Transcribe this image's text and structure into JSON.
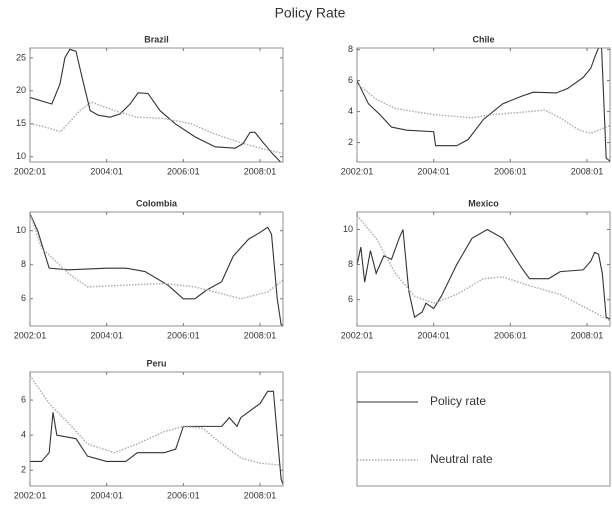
{
  "title": "Policy Rate",
  "chart_data": [
    {
      "type": "line",
      "title": "Brazil",
      "xlim": [
        2002,
        2008.6
      ],
      "ylim": [
        9.2,
        26.5
      ],
      "yticks": [
        10,
        15,
        20,
        25
      ],
      "xticks": [
        {
          "value": 2002,
          "label": "2002:01"
        },
        {
          "value": 2004,
          "label": "2004:01"
        },
        {
          "value": 2006,
          "label": "2006:01"
        },
        {
          "value": 2008,
          "label": "2008:01"
        }
      ],
      "series": [
        {
          "name": "Policy rate",
          "color": "#333333",
          "line_style": "solid",
          "x": [
            2002.0,
            2002.39,
            2002.57,
            2002.78,
            2002.91,
            2003.04,
            2003.2,
            2003.36,
            2003.57,
            2003.78,
            2004.09,
            2004.35,
            2004.61,
            2004.82,
            2005.08,
            2005.39,
            2005.79,
            2006.31,
            2006.83,
            2007.35,
            2007.56,
            2007.74,
            2007.87,
            2008.06,
            2008.32,
            2008.6
          ],
          "values": [
            19,
            18.3,
            18,
            21,
            25,
            26.3,
            26,
            22,
            17,
            16.3,
            16,
            16.5,
            18,
            19.7,
            19.6,
            17,
            15,
            13,
            11.5,
            11.3,
            12,
            13.7,
            13.7,
            12.3,
            10.5,
            8.8
          ]
        },
        {
          "name": "Neutral rate",
          "color": "#aaaaaa",
          "line_style": "dotted",
          "x": [
            2002.0,
            2002.4,
            2002.8,
            2003.3,
            2003.6,
            2004.2,
            2004.8,
            2005.5,
            2006.2,
            2006.8,
            2007.4,
            2008.0,
            2008.6
          ],
          "values": [
            15,
            14.5,
            13.8,
            17,
            18.3,
            17,
            16,
            15.8,
            15,
            13.5,
            12.3,
            11.3,
            10.5
          ]
        }
      ]
    },
    {
      "type": "line",
      "title": "Chile",
      "xlim": [
        2002,
        2008.6
      ],
      "ylim": [
        0.75,
        8.1
      ],
      "yticks": [
        2,
        4,
        6,
        8
      ],
      "xticks": [
        {
          "value": 2002,
          "label": "2002:01"
        },
        {
          "value": 2004,
          "label": "2004:01"
        },
        {
          "value": 2006,
          "label": "2006:01"
        },
        {
          "value": 2008,
          "label": "2008:01"
        }
      ],
      "series": [
        {
          "name": "Policy rate",
          "color": "#333333",
          "line_style": "solid",
          "x": [
            2002.0,
            2002.3,
            2002.6,
            2002.9,
            2003.3,
            2004.0,
            2004.05,
            2004.6,
            2004.9,
            2005.3,
            2005.8,
            2006.3,
            2006.6,
            2007.2,
            2007.5,
            2007.9,
            2008.1,
            2008.2,
            2008.3,
            2008.38,
            2008.45,
            2008.5,
            2008.6
          ],
          "values": [
            6,
            4.5,
            3.8,
            3,
            2.8,
            2.7,
            1.8,
            1.8,
            2.2,
            3.5,
            4.5,
            5,
            5.25,
            5.2,
            5.5,
            6.2,
            6.8,
            7.5,
            8.1,
            8.1,
            4,
            1,
            0.8
          ]
        },
        {
          "name": "Neutral rate",
          "color": "#aaaaaa",
          "line_style": "dotted",
          "x": [
            2002.0,
            2002.5,
            2003.0,
            2004.0,
            2005.0,
            2005.5,
            2006.5,
            2006.9,
            2007.3,
            2007.8,
            2008.1,
            2008.6
          ],
          "values": [
            5.8,
            4.8,
            4.2,
            3.8,
            3.6,
            3.8,
            4,
            4.1,
            3.6,
            2.8,
            2.6,
            3.1
          ]
        }
      ]
    },
    {
      "type": "line",
      "title": "Colombia",
      "xlim": [
        2002,
        2008.6
      ],
      "ylim": [
        4.4,
        11.1
      ],
      "yticks": [
        6,
        8,
        10
      ],
      "xticks": [
        {
          "value": 2002,
          "label": "2002:01"
        },
        {
          "value": 2004,
          "label": "2004:01"
        },
        {
          "value": 2006,
          "label": "2006:01"
        },
        {
          "value": 2008,
          "label": "2008:01"
        }
      ],
      "series": [
        {
          "name": "Policy rate",
          "color": "#333333",
          "line_style": "solid",
          "x": [
            2002.0,
            2002.2,
            2002.5,
            2003.0,
            2004.0,
            2004.5,
            2005.0,
            2005.6,
            2006.0,
            2006.3,
            2006.6,
            2007.0,
            2007.3,
            2007.7,
            2008.0,
            2008.2,
            2008.3,
            2008.45,
            2008.55,
            2008.6
          ],
          "values": [
            11,
            10,
            7.8,
            7.7,
            7.8,
            7.8,
            7.6,
            6.8,
            6,
            6,
            6.5,
            7,
            8.5,
            9.5,
            9.9,
            10.2,
            9.8,
            6,
            4.5,
            4.4
          ]
        },
        {
          "name": "Neutral rate",
          "color": "#aaaaaa",
          "line_style": "dotted",
          "x": [
            2002.0,
            2002.3,
            2003.0,
            2003.5,
            2004.5,
            2005.5,
            2006.3,
            2007.0,
            2007.5,
            2008.2,
            2008.6
          ],
          "values": [
            11,
            9,
            7.5,
            6.7,
            6.8,
            6.9,
            6.7,
            6.3,
            6,
            6.4,
            7.1
          ]
        }
      ]
    },
    {
      "type": "line",
      "title": "Mexico",
      "xlim": [
        2002,
        2008.6
      ],
      "ylim": [
        4.5,
        11
      ],
      "yticks": [
        6,
        8,
        10
      ],
      "xticks": [
        {
          "value": 2002,
          "label": "2002:01"
        },
        {
          "value": 2004,
          "label": "2004:01"
        },
        {
          "value": 2006,
          "label": "2006:01"
        },
        {
          "value": 2008,
          "label": "2008:01"
        }
      ],
      "series": [
        {
          "name": "Policy rate",
          "color": "#333333",
          "line_style": "solid",
          "x": [
            2002.0,
            2002.1,
            2002.2,
            2002.35,
            2002.5,
            2002.7,
            2002.9,
            2003.1,
            2003.2,
            2003.35,
            2003.5,
            2003.7,
            2003.8,
            2004.0,
            2004.2,
            2004.6,
            2005.0,
            2005.4,
            2005.8,
            2006.3,
            2006.5,
            2007.0,
            2007.3,
            2007.9,
            2008.1,
            2008.2,
            2008.3,
            2008.4,
            2008.5,
            2008.6
          ],
          "values": [
            8,
            9,
            7,
            8.8,
            7.5,
            8.5,
            8.3,
            9.5,
            10,
            6.5,
            5,
            5.3,
            5.8,
            5.5,
            6.2,
            8,
            9.5,
            10,
            9.5,
            7.8,
            7.2,
            7.2,
            7.6,
            7.7,
            8.2,
            8.7,
            8.6,
            7.5,
            5,
            4.9
          ]
        },
        {
          "name": "Neutral rate",
          "color": "#aaaaaa",
          "line_style": "dotted",
          "x": [
            2002.0,
            2002.5,
            2003.0,
            2003.5,
            2004.0,
            2004.6,
            2005.3,
            2005.8,
            2006.5,
            2007.3,
            2008.0,
            2008.6
          ],
          "values": [
            10.8,
            9.5,
            7.5,
            6.2,
            5.8,
            6.3,
            7.2,
            7.3,
            6.8,
            6.3,
            5.5,
            4.8
          ]
        }
      ]
    },
    {
      "type": "line",
      "title": "Peru",
      "xlim": [
        2002,
        2008.6
      ],
      "ylim": [
        1.1,
        7.6
      ],
      "yticks": [
        2,
        4,
        6
      ],
      "xticks": [
        {
          "value": 2002,
          "label": "2002:01"
        },
        {
          "value": 2004,
          "label": "2004:01"
        },
        {
          "value": 2006,
          "label": "2006:01"
        },
        {
          "value": 2008,
          "label": "2008:01"
        }
      ],
      "series": [
        {
          "name": "Policy rate",
          "color": "#333333",
          "line_style": "solid",
          "x": [
            2002.0,
            2002.3,
            2002.5,
            2002.6,
            2002.7,
            2003.2,
            2003.5,
            2004.0,
            2004.5,
            2004.8,
            2005.5,
            2005.8,
            2006.0,
            2006.5,
            2007.0,
            2007.2,
            2007.4,
            2007.5,
            2008.0,
            2008.2,
            2008.35,
            2008.45,
            2008.55,
            2008.6
          ],
          "values": [
            2.5,
            2.5,
            3,
            5.3,
            4,
            3.8,
            2.8,
            2.5,
            2.5,
            3,
            3,
            3.2,
            4.5,
            4.5,
            4.5,
            5,
            4.5,
            5,
            5.8,
            6.5,
            6.5,
            4,
            1.5,
            1.2
          ]
        },
        {
          "name": "Neutral rate",
          "color": "#aaaaaa",
          "line_style": "dotted",
          "x": [
            2002.0,
            2002.5,
            2003.0,
            2003.5,
            2004.2,
            2004.8,
            2005.5,
            2006.0,
            2006.5,
            2007.0,
            2007.5,
            2008.0,
            2008.5
          ],
          "values": [
            7.4,
            5.8,
            4.7,
            3.5,
            3,
            3.5,
            4.2,
            4.5,
            4.4,
            3.5,
            2.7,
            2.4,
            2.3
          ]
        }
      ]
    }
  ]
}
